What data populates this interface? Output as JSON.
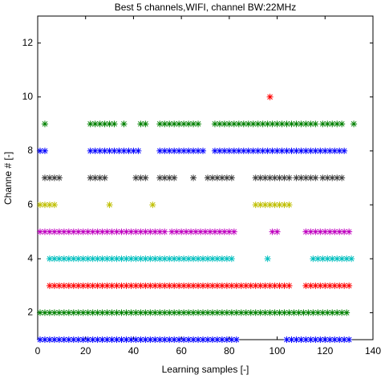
{
  "chart_data": {
    "type": "scatter",
    "title": "Best 5 channels,WIFI, channel BW:22MHz",
    "x_label": "Learning samples [-]",
    "y_label": "Channe # [-]",
    "xlim": [
      0,
      140
    ],
    "ylim": [
      1,
      13
    ],
    "xticks": [
      0,
      20,
      40,
      60,
      80,
      100,
      120,
      140
    ],
    "yticks": [
      2,
      4,
      6,
      8,
      10,
      12
    ],
    "series": [
      {
        "color": "#0000ff",
        "x": [
          1,
          3,
          5,
          7,
          9,
          11,
          13,
          15,
          17,
          19,
          21,
          23,
          25,
          27,
          29,
          31,
          33,
          35,
          37,
          39,
          41,
          43,
          45,
          47,
          49,
          51,
          53,
          55,
          57,
          59,
          61,
          63,
          65,
          67,
          69,
          71,
          73,
          75,
          77,
          79,
          81,
          83,
          104,
          106,
          108,
          110,
          112,
          114,
          116,
          118,
          120,
          122,
          124,
          126,
          128,
          130
        ],
        "values": [
          1,
          1,
          1,
          1,
          1,
          1,
          1,
          1,
          1,
          1,
          1,
          1,
          1,
          1,
          1,
          1,
          1,
          1,
          1,
          1,
          1,
          1,
          1,
          1,
          1,
          1,
          1,
          1,
          1,
          1,
          1,
          1,
          1,
          1,
          1,
          1,
          1,
          1,
          1,
          1,
          1,
          1,
          1,
          1,
          1,
          1,
          1,
          1,
          1,
          1,
          1,
          1,
          1,
          1,
          1,
          1
        ]
      },
      {
        "color": "#008000",
        "x": [
          1,
          3,
          5,
          7,
          9,
          11,
          13,
          15,
          17,
          19,
          21,
          23,
          25,
          27,
          29,
          31,
          33,
          35,
          37,
          39,
          41,
          43,
          45,
          47,
          49,
          51,
          53,
          55,
          57,
          59,
          61,
          63,
          65,
          67,
          69,
          71,
          73,
          75,
          77,
          79,
          81,
          83,
          85,
          87,
          89,
          91,
          93,
          95,
          97,
          99,
          101,
          103,
          105,
          107,
          109,
          111,
          113,
          115,
          117,
          119,
          121,
          123,
          125,
          127,
          129
        ],
        "values": [
          2,
          2,
          2,
          2,
          2,
          2,
          2,
          2,
          2,
          2,
          2,
          2,
          2,
          2,
          2,
          2,
          2,
          2,
          2,
          2,
          2,
          2,
          2,
          2,
          2,
          2,
          2,
          2,
          2,
          2,
          2,
          2,
          2,
          2,
          2,
          2,
          2,
          2,
          2,
          2,
          2,
          2,
          2,
          2,
          2,
          2,
          2,
          2,
          2,
          2,
          2,
          2,
          2,
          2,
          2,
          2,
          2,
          2,
          2,
          2,
          2,
          2,
          2,
          2,
          2
        ]
      },
      {
        "color": "#ff0000",
        "x": [
          5,
          7,
          9,
          11,
          13,
          15,
          17,
          19,
          21,
          23,
          25,
          27,
          29,
          31,
          33,
          35,
          37,
          39,
          41,
          43,
          45,
          47,
          49,
          51,
          53,
          55,
          57,
          59,
          61,
          63,
          65,
          67,
          69,
          71,
          73,
          75,
          77,
          79,
          81,
          83,
          85,
          87,
          89,
          91,
          93,
          95,
          97,
          99,
          101,
          103,
          105,
          112,
          114,
          116,
          118,
          120,
          122,
          124,
          126,
          128,
          130
        ],
        "values": [
          3,
          3,
          3,
          3,
          3,
          3,
          3,
          3,
          3,
          3,
          3,
          3,
          3,
          3,
          3,
          3,
          3,
          3,
          3,
          3,
          3,
          3,
          3,
          3,
          3,
          3,
          3,
          3,
          3,
          3,
          3,
          3,
          3,
          3,
          3,
          3,
          3,
          3,
          3,
          3,
          3,
          3,
          3,
          3,
          3,
          3,
          3,
          3,
          3,
          3,
          3,
          3,
          3,
          3,
          3,
          3,
          3,
          3,
          3,
          3,
          3
        ]
      },
      {
        "color": "#00bfbf",
        "x": [
          5,
          7,
          9,
          11,
          13,
          15,
          17,
          19,
          21,
          23,
          25,
          27,
          29,
          31,
          33,
          35,
          37,
          39,
          41,
          43,
          45,
          47,
          49,
          51,
          53,
          55,
          57,
          59,
          61,
          63,
          65,
          67,
          69,
          71,
          73,
          75,
          77,
          79,
          81,
          96,
          115,
          117,
          119,
          121,
          123,
          125,
          127,
          129,
          131
        ],
        "values": [
          4,
          4,
          4,
          4,
          4,
          4,
          4,
          4,
          4,
          4,
          4,
          4,
          4,
          4,
          4,
          4,
          4,
          4,
          4,
          4,
          4,
          4,
          4,
          4,
          4,
          4,
          4,
          4,
          4,
          4,
          4,
          4,
          4,
          4,
          4,
          4,
          4,
          4,
          4,
          4,
          4,
          4,
          4,
          4,
          4,
          4,
          4,
          4,
          4
        ]
      },
      {
        "color": "#bf00bf",
        "x": [
          1,
          3,
          5,
          7,
          9,
          11,
          13,
          15,
          17,
          19,
          21,
          23,
          25,
          27,
          29,
          31,
          33,
          35,
          37,
          39,
          41,
          43,
          45,
          47,
          49,
          51,
          53,
          56,
          58,
          60,
          62,
          64,
          66,
          68,
          70,
          72,
          74,
          76,
          78,
          80,
          82,
          98,
          100,
          112,
          114,
          116,
          118,
          120,
          122,
          124,
          126,
          128,
          130
        ],
        "values": [
          5,
          5,
          5,
          5,
          5,
          5,
          5,
          5,
          5,
          5,
          5,
          5,
          5,
          5,
          5,
          5,
          5,
          5,
          5,
          5,
          5,
          5,
          5,
          5,
          5,
          5,
          5,
          5,
          5,
          5,
          5,
          5,
          5,
          5,
          5,
          5,
          5,
          5,
          5,
          5,
          5,
          5,
          5,
          5,
          5,
          5,
          5,
          5,
          5,
          5,
          5,
          5,
          5
        ]
      },
      {
        "color": "#bfbf00",
        "x": [
          1,
          3,
          5,
          7,
          30,
          48,
          91,
          93,
          95,
          97,
          99,
          101,
          103,
          105
        ],
        "values": [
          6,
          6,
          6,
          6,
          6,
          6,
          6,
          6,
          6,
          6,
          6,
          6,
          6,
          6
        ]
      },
      {
        "color": "#404040",
        "x": [
          3,
          5,
          7,
          9,
          22,
          24,
          26,
          28,
          41,
          43,
          45,
          51,
          53,
          55,
          57,
          65,
          71,
          73,
          75,
          77,
          79,
          81,
          91,
          93,
          95,
          97,
          99,
          101,
          103,
          105,
          108,
          110,
          112,
          114,
          116,
          119,
          121,
          123,
          125,
          127
        ],
        "values": [
          7,
          7,
          7,
          7,
          7,
          7,
          7,
          7,
          7,
          7,
          7,
          7,
          7,
          7,
          7,
          7,
          7,
          7,
          7,
          7,
          7,
          7,
          7,
          7,
          7,
          7,
          7,
          7,
          7,
          7,
          7,
          7,
          7,
          7,
          7,
          7,
          7,
          7,
          7,
          7
        ]
      },
      {
        "color": "#0000ff",
        "x": [
          1,
          3,
          22,
          24,
          26,
          28,
          30,
          32,
          34,
          36,
          38,
          40,
          42,
          51,
          53,
          55,
          57,
          59,
          61,
          63,
          65,
          67,
          69,
          74,
          76,
          78,
          80,
          82,
          84,
          86,
          88,
          90,
          92,
          94,
          96,
          98,
          100,
          102,
          104,
          106,
          108,
          110,
          112,
          114,
          116,
          118,
          120,
          122,
          124,
          126,
          128
        ],
        "values": [
          8,
          8,
          8,
          8,
          8,
          8,
          8,
          8,
          8,
          8,
          8,
          8,
          8,
          8,
          8,
          8,
          8,
          8,
          8,
          8,
          8,
          8,
          8,
          8,
          8,
          8,
          8,
          8,
          8,
          8,
          8,
          8,
          8,
          8,
          8,
          8,
          8,
          8,
          8,
          8,
          8,
          8,
          8,
          8,
          8,
          8,
          8,
          8,
          8,
          8,
          8
        ]
      },
      {
        "color": "#008000",
        "x": [
          3,
          22,
          24,
          26,
          28,
          30,
          32,
          36,
          43,
          45,
          51,
          53,
          55,
          57,
          59,
          61,
          63,
          65,
          67,
          74,
          76,
          78,
          80,
          82,
          84,
          86,
          88,
          90,
          92,
          94,
          96,
          98,
          100,
          102,
          104,
          106,
          108,
          110,
          112,
          114,
          116,
          119,
          121,
          123,
          125,
          127,
          132
        ],
        "values": [
          9,
          9,
          9,
          9,
          9,
          9,
          9,
          9,
          9,
          9,
          9,
          9,
          9,
          9,
          9,
          9,
          9,
          9,
          9,
          9,
          9,
          9,
          9,
          9,
          9,
          9,
          9,
          9,
          9,
          9,
          9,
          9,
          9,
          9,
          9,
          9,
          9,
          9,
          9,
          9,
          9,
          9,
          9,
          9,
          9,
          9,
          9
        ]
      },
      {
        "color": "#ff0000",
        "x": [
          97
        ],
        "values": [
          10
        ]
      }
    ]
  }
}
